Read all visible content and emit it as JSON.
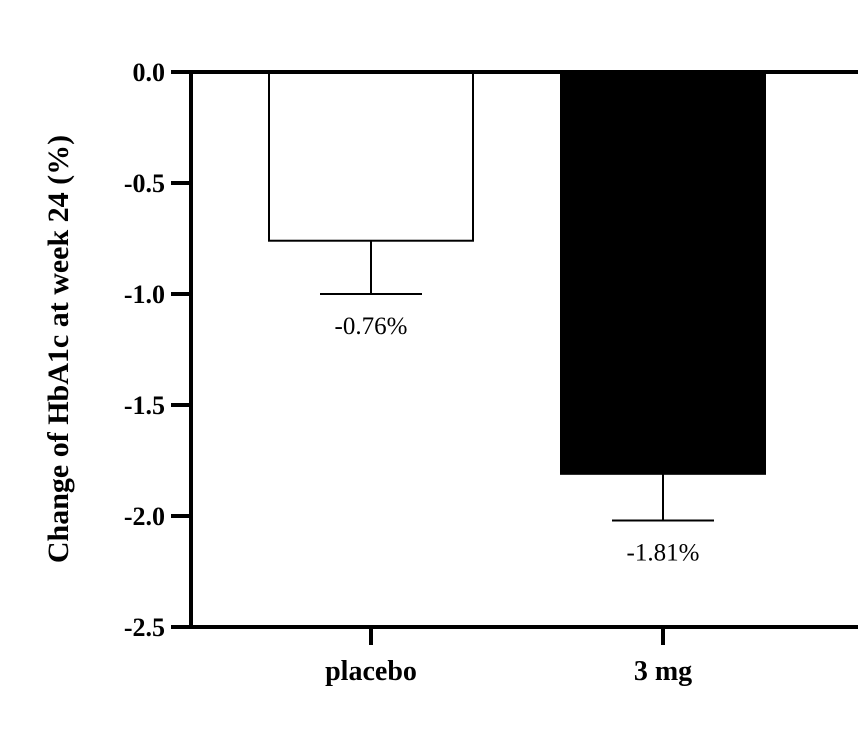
{
  "chart_data": {
    "type": "bar",
    "title": "",
    "xlabel": "",
    "ylabel": "Change of HbA1c at week 24 (%)",
    "categories": [
      "placebo",
      "3 mg"
    ],
    "values": [
      -0.76,
      -1.81
    ],
    "error_lower": [
      -1.0,
      -2.02
    ],
    "data_labels": [
      "-0.76%",
      "-1.81%"
    ],
    "bar_colors": [
      "#ffffff",
      "#000000"
    ],
    "ylim": [
      -2.5,
      0.0
    ],
    "yticks": [
      0.0,
      -0.5,
      -1.0,
      -1.5,
      -2.0,
      -2.5
    ],
    "ytick_labels": [
      "0.0",
      "-0.5",
      "-1.0",
      "-1.5",
      "-2.0",
      "-2.5"
    ],
    "grid": false
  }
}
